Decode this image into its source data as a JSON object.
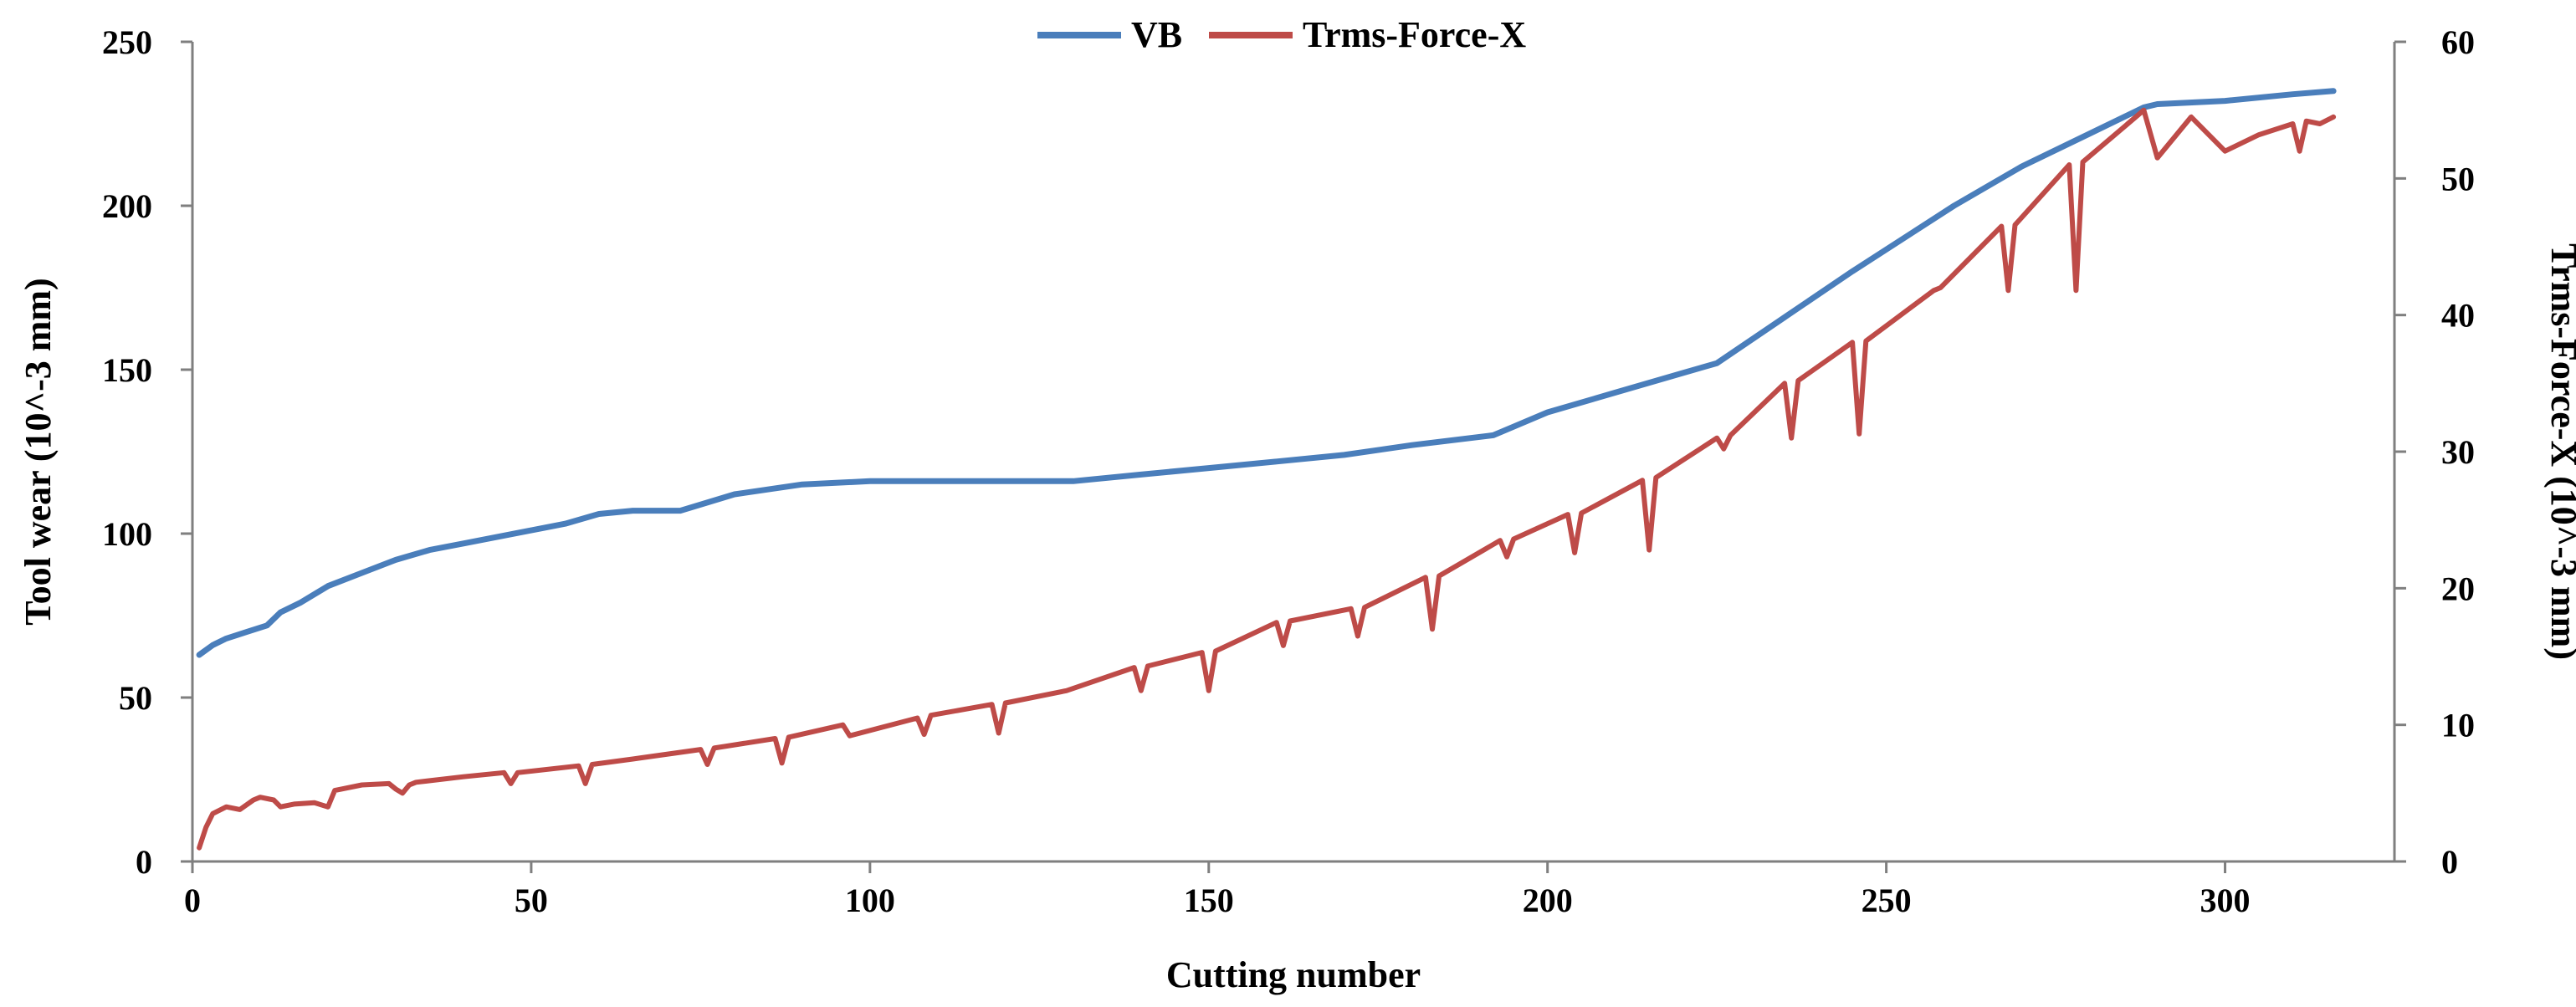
{
  "chart_data": {
    "type": "line",
    "title": "",
    "xlabel": "Cutting number",
    "ylabel": "Tool wear (10^-3 mm)",
    "y2label": "Trms-Force-X (10^-3 mm)",
    "xlim": [
      0,
      325
    ],
    "ylim": [
      0,
      250
    ],
    "y2lim": [
      0,
      60
    ],
    "xticks": [
      "0",
      "50",
      "100",
      "150",
      "200",
      "250",
      "300"
    ],
    "yticks": [
      "0",
      "50",
      "100",
      "150",
      "200",
      "250"
    ],
    "y2ticks": [
      "0",
      "10",
      "20",
      "30",
      "40",
      "50",
      "60"
    ],
    "grid": false,
    "legend_position": "top-center",
    "series": [
      {
        "name": "VB",
        "axis": "left",
        "color": "#4a7ebb",
        "x": [
          1,
          3,
          5,
          8,
          11,
          13,
          16,
          20,
          25,
          30,
          35,
          40,
          45,
          50,
          55,
          60,
          65,
          72,
          80,
          90,
          100,
          110,
          120,
          130,
          140,
          150,
          160,
          170,
          180,
          192,
          200,
          210,
          220,
          225,
          235,
          245,
          260,
          270,
          280,
          288,
          290,
          300,
          310,
          316
        ],
        "values": [
          63,
          66,
          68,
          70,
          72,
          76,
          79,
          84,
          88,
          92,
          95,
          97,
          99,
          101,
          103,
          106,
          107,
          107,
          112,
          115,
          116,
          116,
          116,
          116,
          118,
          120,
          122,
          124,
          127,
          130,
          137,
          143,
          149,
          152,
          166,
          180,
          200,
          212,
          222,
          230,
          231,
          232,
          234,
          235
        ]
      },
      {
        "name": "Trms-Force-X",
        "axis": "right",
        "color": "#be4b48",
        "x": [
          1,
          2,
          3,
          5,
          7,
          9,
          10,
          12,
          13,
          15,
          18,
          20,
          21,
          22,
          25,
          29,
          30,
          31,
          32,
          33,
          40,
          46,
          47,
          48,
          57,
          58,
          59,
          65,
          75,
          76,
          77,
          86,
          87,
          88,
          96,
          97,
          107,
          108,
          109,
          118,
          119,
          120,
          129,
          139,
          140,
          141,
          149,
          150,
          151,
          160,
          161,
          162,
          171,
          172,
          173,
          182,
          183,
          184,
          193,
          194,
          195,
          203,
          204,
          205,
          214,
          215,
          216,
          225,
          226,
          227,
          235,
          236,
          237,
          245,
          246,
          247,
          257,
          258,
          267,
          268,
          269,
          277,
          278,
          279,
          288,
          290,
          295,
          300,
          305,
          310,
          311,
          312,
          314,
          316
        ],
        "values": [
          1.0,
          2.5,
          3.5,
          4.0,
          3.8,
          4.5,
          4.7,
          4.5,
          4.0,
          4.2,
          4.3,
          4.0,
          5.2,
          5.3,
          5.6,
          5.7,
          5.3,
          5.0,
          5.6,
          5.8,
          6.2,
          6.5,
          5.7,
          6.5,
          7.0,
          5.7,
          7.1,
          7.5,
          8.2,
          7.1,
          8.3,
          9.0,
          7.2,
          9.1,
          10.0,
          9.2,
          10.5,
          9.3,
          10.7,
          11.5,
          9.4,
          11.6,
          12.5,
          14.2,
          12.5,
          14.3,
          15.3,
          12.5,
          15.4,
          17.5,
          15.8,
          17.6,
          18.5,
          16.5,
          18.6,
          20.8,
          17.0,
          20.9,
          23.5,
          22.3,
          23.6,
          25.4,
          22.6,
          25.5,
          27.9,
          22.8,
          28.1,
          31.0,
          30.2,
          31.2,
          35.0,
          31.0,
          35.2,
          38.0,
          31.3,
          38.1,
          41.8,
          42.0,
          46.5,
          41.8,
          46.6,
          51.0,
          41.8,
          51.2,
          55.0,
          51.5,
          54.5,
          52.0,
          53.2,
          54.0,
          52.0,
          54.2,
          54.0,
          54.5
        ]
      }
    ]
  }
}
